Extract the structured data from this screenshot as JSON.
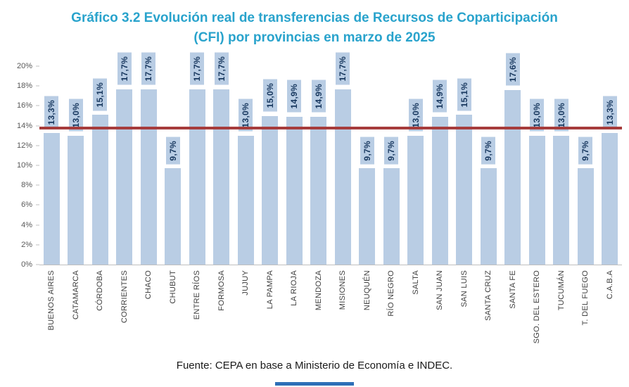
{
  "title": {
    "line1": "Gráfico 3.2 Evolución real de transferencias de Recursos de Coparticipación",
    "line2": "(CFI) por provincias en marzo de 2025"
  },
  "footer": {
    "source": "Fuente: CEPA en base a Ministerio de Economía e INDEC."
  },
  "colors": {
    "bar": "#b9cde4",
    "value_label_text": "#17375e",
    "reference_line": "#a63c3c",
    "title": "#29a3cc",
    "axis_text": "#595959",
    "x_label_text": "#404040",
    "footer_accent": "#2e6fb7"
  },
  "chart_data": {
    "type": "bar",
    "title": "Gráfico 3.2 Evolución real de transferencias de Recursos de Coparticipación (CFI) por provincias en marzo de 2025",
    "categories": [
      "BUENOS AIRES",
      "CATAMARCA",
      "CÓRDOBA",
      "CORRIENTES",
      "CHACO",
      "CHUBUT",
      "ENTRE RÍOS",
      "FORMOSA",
      "JUJUY",
      "LA PAMPA",
      "LA RIOJA",
      "MENDOZA",
      "MISIONES",
      "NEUQUÉN",
      "RÍO NEGRO",
      "SALTA",
      "SAN JUAN",
      "SAN LUIS",
      "SANTA CRUZ",
      "SANTA FE",
      "SGO. DEL ESTERO",
      "TUCUMÁN",
      "T. DEL FUEGO",
      "C.A.B.A"
    ],
    "values": [
      13.3,
      13.0,
      15.1,
      17.7,
      17.7,
      9.7,
      17.7,
      17.7,
      13.0,
      15.0,
      14.9,
      14.9,
      17.7,
      9.7,
      9.7,
      13.0,
      14.9,
      15.1,
      9.7,
      17.6,
      13.0,
      13.0,
      9.7,
      13.3
    ],
    "labels": [
      "13,3%",
      "13,0%",
      "15,1%",
      "17,7%",
      "17,7%",
      "9,7%",
      "17,7%",
      "17,7%",
      "13,0%",
      "15,0%",
      "14,9%",
      "14,9%",
      "17,7%",
      "9,7%",
      "9,7%",
      "13,0%",
      "14,9%",
      "15,1%",
      "9,7%",
      "17,6%",
      "13,0%",
      "13,0%",
      "9,7%",
      "13,3%"
    ],
    "reference_line": 13.8,
    "ylim": [
      0,
      21
    ],
    "y_ticks": [
      "0%",
      "2%",
      "4%",
      "6%",
      "8%",
      "10%",
      "12%",
      "14%",
      "16%",
      "18%",
      "20%"
    ],
    "grid": false,
    "legend": false,
    "xlabel": "",
    "ylabel": ""
  }
}
